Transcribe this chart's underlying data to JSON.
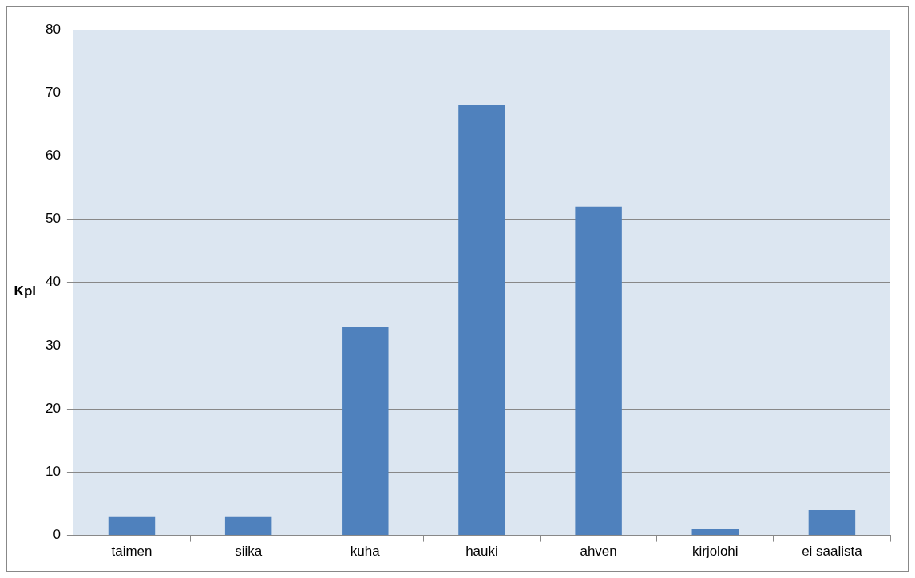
{
  "chart_data": {
    "type": "bar",
    "ylabel": "Kpl",
    "categories": [
      "taimen",
      "siika",
      "kuha",
      "hauki",
      "ahven",
      "kirjolohi",
      "ei saalista"
    ],
    "values": [
      3,
      3,
      33,
      68,
      52,
      1,
      4
    ],
    "color": "#4f81bd",
    "ylim": [
      0,
      80
    ],
    "yticks": [
      0,
      10,
      20,
      30,
      40,
      50,
      60,
      70,
      80
    ],
    "grid": "y"
  }
}
